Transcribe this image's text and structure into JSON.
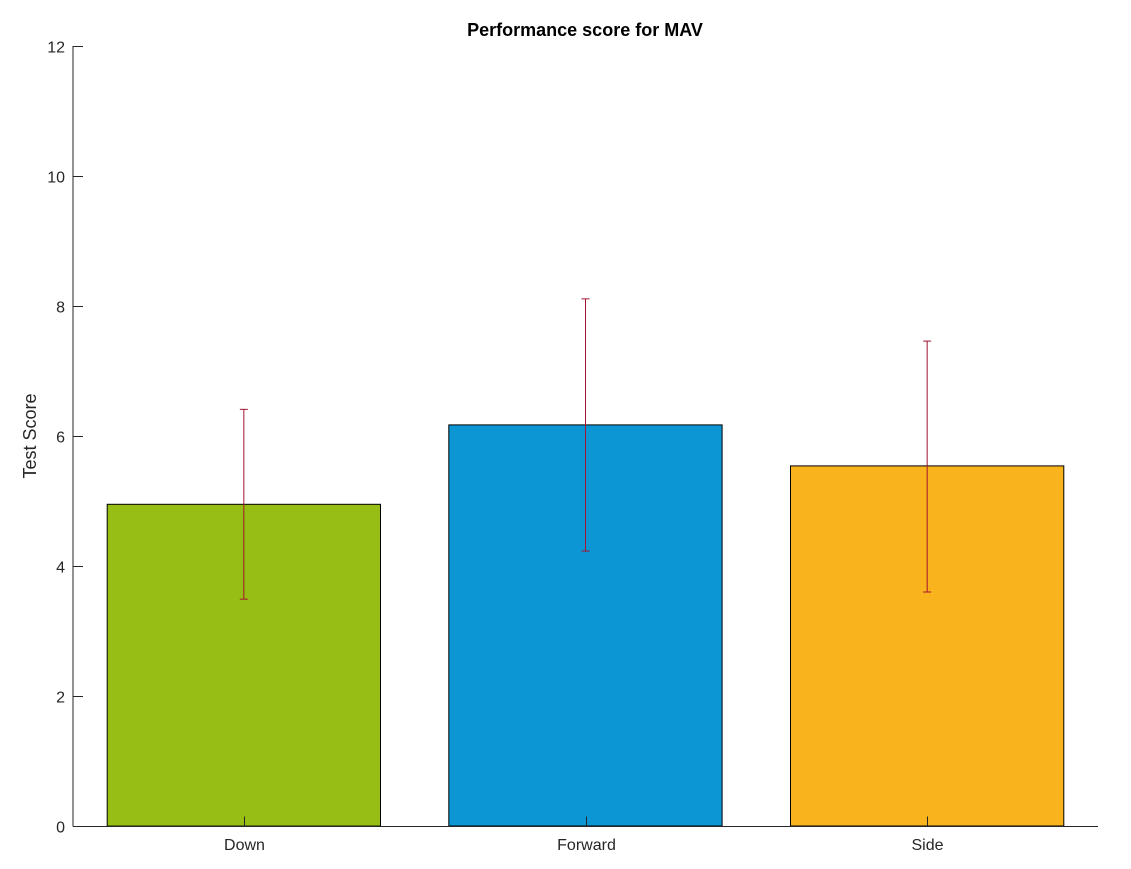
{
  "chart_data": {
    "type": "bar",
    "title": "Performance score for MAV",
    "xlabel": "",
    "ylabel": "Test Score",
    "categories": [
      "Down",
      "Forward",
      "Side"
    ],
    "values": [
      4.95,
      6.17,
      5.54
    ],
    "error_low": [
      3.49,
      4.23,
      3.6
    ],
    "error_high": [
      6.41,
      8.11,
      7.46
    ],
    "bar_colors": [
      "#96BE14",
      "#0C96D4",
      "#F9B31D"
    ],
    "error_color": "#A2142F",
    "ylim": [
      0,
      12
    ],
    "yticks": [
      "0",
      "2",
      "4",
      "6",
      "8",
      "10",
      "12"
    ],
    "ytick_values": [
      0,
      2,
      4,
      6,
      8,
      10,
      12
    ],
    "grid": false,
    "legend": false
  }
}
